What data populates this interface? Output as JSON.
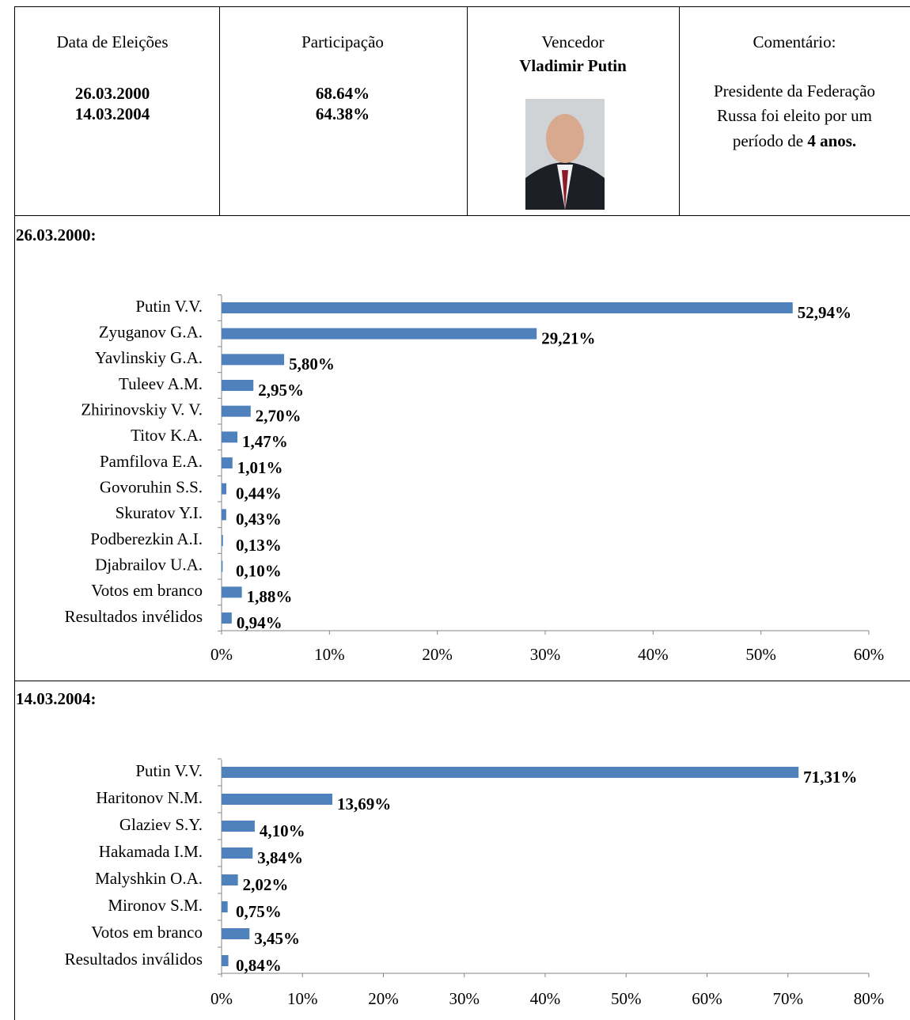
{
  "header": {
    "election_dates": {
      "label": "Data de Eleições",
      "values": [
        "26.03.2000",
        "14.03.2004"
      ]
    },
    "turnout": {
      "label": "Participação",
      "values": [
        "68.64%",
        "64.38%"
      ]
    },
    "winner": {
      "label": "Vencedor",
      "name": "Vladimir Putin"
    },
    "comment": {
      "label": "Comentário:",
      "lines": [
        "Presidente da Federação",
        "Russa foi eleito por um",
        "período de "
      ],
      "bold": "4 anos."
    }
  },
  "chart_data": [
    {
      "type": "bar",
      "orientation": "horizontal",
      "title": "26.03.2000:",
      "color": "#4f81bd",
      "categories": [
        "Putin V.V.",
        "Zyuganov G.A.",
        "Yavlinskiy G.A.",
        "Tuleev A.M.",
        "Zhirinovskiy V. V.",
        "Titov K.A.",
        "Pamfilova E.A.",
        "Govoruhin S.S.",
        "Skuratov Y.I.",
        "Podberezkin A.I.",
        "Djabrailov U.A.",
        "Votos em branco",
        "Resultados invélidos"
      ],
      "values": [
        52.94,
        29.21,
        5.8,
        2.95,
        2.7,
        1.47,
        1.01,
        0.44,
        0.43,
        0.13,
        0.1,
        1.88,
        0.94
      ],
      "value_labels": [
        "52,94%",
        "29,21%",
        "5,80%",
        "2,95%",
        "2,70%",
        "1,47%",
        "1,01%",
        "0,44%",
        "0,43%",
        "0,13%",
        "0,10%",
        "1,88%",
        "0,94%"
      ],
      "xlim": [
        0,
        60
      ],
      "xticks": [
        {
          "value": 0,
          "label": "0%"
        },
        {
          "value": 10,
          "label": "10%"
        },
        {
          "value": 20,
          "label": "20%"
        },
        {
          "value": 30,
          "label": "30%"
        },
        {
          "value": 40,
          "label": "40%"
        },
        {
          "value": 50,
          "label": "50%"
        },
        {
          "value": 60,
          "label": "60%"
        }
      ]
    },
    {
      "type": "bar",
      "orientation": "horizontal",
      "title": "14.03.2004:",
      "color": "#4f81bd",
      "categories": [
        "Putin V.V.",
        "Haritonov N.M.",
        "Glaziev S.Y.",
        "Hakamada I.M.",
        "Malyshkin O.A.",
        "Mironov S.M.",
        "Votos em branco",
        "Resultados inválidos"
      ],
      "values": [
        71.31,
        13.69,
        4.1,
        3.84,
        2.02,
        0.75,
        3.45,
        0.84
      ],
      "value_labels": [
        "71,31%",
        "13,69%",
        "4,10%",
        "3,84%",
        "2,02%",
        "0,75%",
        "3,45%",
        "0,84%"
      ],
      "xlim": [
        0,
        80
      ],
      "xticks": [
        {
          "value": 0,
          "label": "0%"
        },
        {
          "value": 10,
          "label": "10%"
        },
        {
          "value": 20,
          "label": "20%"
        },
        {
          "value": 30,
          "label": "30%"
        },
        {
          "value": 40,
          "label": "40%"
        },
        {
          "value": 50,
          "label": "50%"
        },
        {
          "value": 60,
          "label": "60%"
        },
        {
          "value": 70,
          "label": "70%"
        },
        {
          "value": 80,
          "label": "80%"
        }
      ]
    }
  ]
}
